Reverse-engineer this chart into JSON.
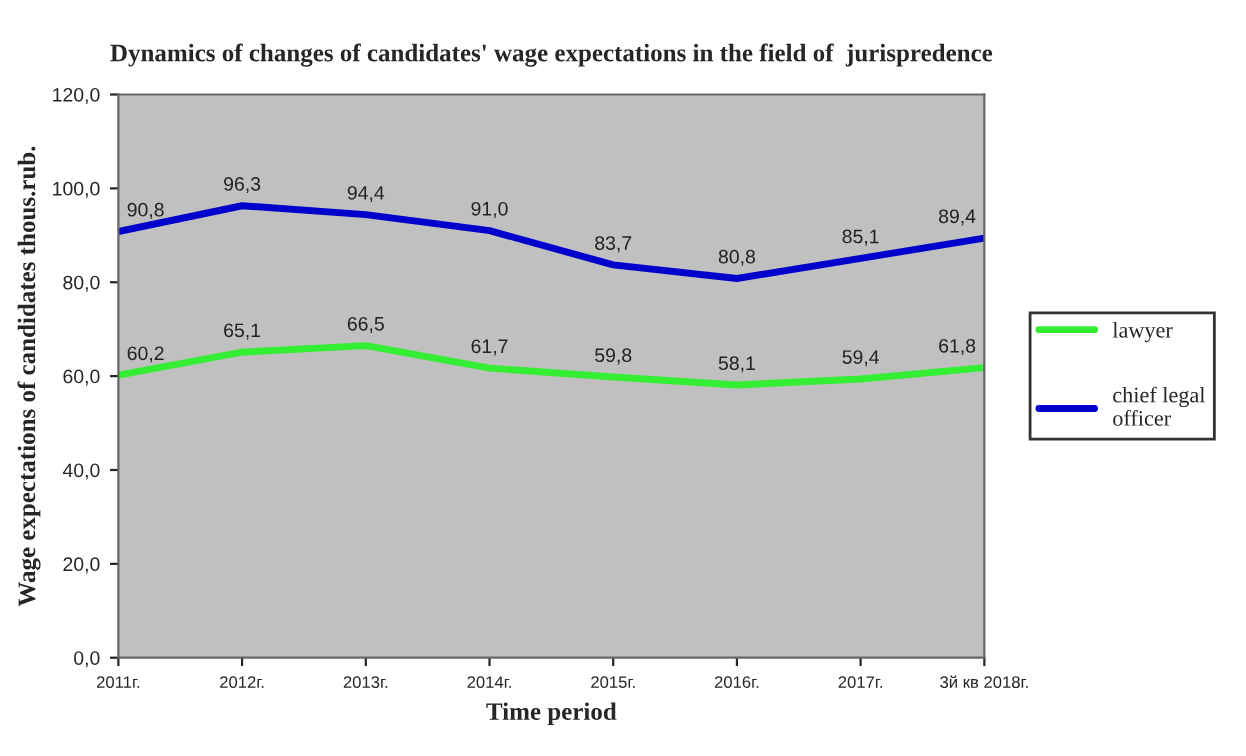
{
  "chart_data": {
    "type": "line",
    "title": "Dynamics of changes of candidates' wage expectations in the field of  jurispredence",
    "xlabel": "Time period",
    "ylabel": "Wage expectations of candidates thous.rub.",
    "categories": [
      "2011г.",
      "2012г.",
      "2013г.",
      "2014г.",
      "2015г.",
      "2016г.",
      "2017г.",
      "3й кв 2018г."
    ],
    "series": [
      {
        "name": "lawyer",
        "color": "#33ee33",
        "values": [
          60.2,
          65.1,
          66.5,
          61.7,
          59.8,
          58.1,
          59.4,
          61.8
        ],
        "value_labels": [
          "60,2",
          "65,1",
          "66,5",
          "61,7",
          "59,8",
          "58,1",
          "59,4",
          "61,8"
        ]
      },
      {
        "name": "chief legal officer",
        "color": "#0000cc",
        "values": [
          90.8,
          96.3,
          94.4,
          91.0,
          83.7,
          80.8,
          85.1,
          89.4
        ],
        "value_labels": [
          "90,8",
          "96,3",
          "94,4",
          "91,0",
          "83,7",
          "80,8",
          "85,1",
          "89,4"
        ]
      }
    ],
    "ylim": [
      0,
      120
    ],
    "yticks": [
      {
        "value": 0,
        "label": "0,0"
      },
      {
        "value": 20,
        "label": "20,0"
      },
      {
        "value": 40,
        "label": "40,0"
      },
      {
        "value": 60,
        "label": "60,0"
      },
      {
        "value": 80,
        "label": "80,0"
      },
      {
        "value": 100,
        "label": "100,0"
      },
      {
        "value": 120,
        "label": "120,0"
      }
    ],
    "grid": false,
    "legend": "right",
    "marker": "none",
    "line_style": "solid"
  }
}
